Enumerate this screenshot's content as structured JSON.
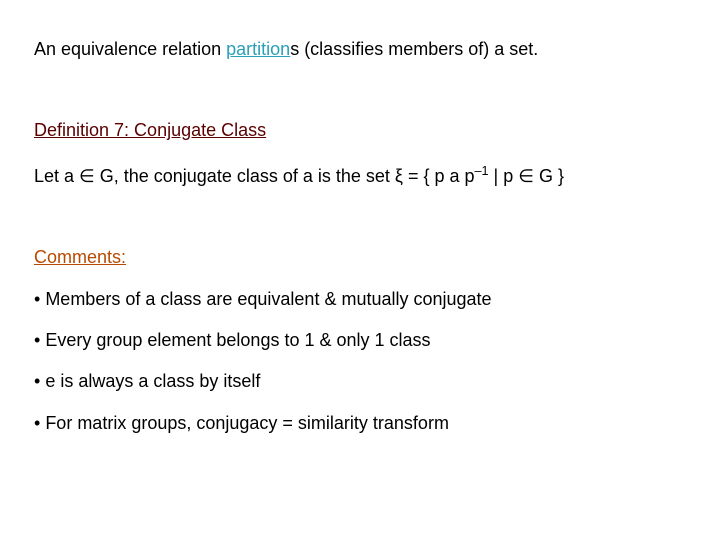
{
  "colors": {
    "background": "#ffffff",
    "body_text": "#000000",
    "heading": "#5a0000",
    "keyword": "#2b9fb8",
    "comments_heading": "#b84a00"
  },
  "typography": {
    "font_family": "Arial",
    "body_fontsize_pt": 14,
    "line_height": 1.3
  },
  "sentence1": {
    "pre": "An equivalence relation ",
    "keyword": "partition",
    "post": "s (classifies members of) a set."
  },
  "definition_heading": "Definition 7:  Conjugate Class",
  "definition_body": {
    "pre": "Let  a ",
    "in": "∈",
    "mid1": " G, the conjugate class of a is the set  ξ = { p a p",
    "sup": "–1",
    "mid2": " | p ",
    "in2": "∈",
    "post": " G }"
  },
  "comments_heading": "Comments:",
  "bullets": [
    "Members of a class are equivalent & mutually conjugate",
    "Every group element belongs to 1 & only 1 class",
    "e is always a class by itself",
    "For matrix groups, conjugacy = similarity transform"
  ]
}
